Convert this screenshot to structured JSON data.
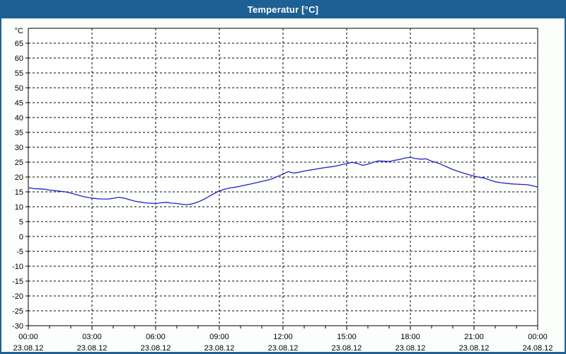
{
  "window": {
    "title": "Temperatur [°C]"
  },
  "colors": {
    "titlebar": "#1e6094",
    "frame": "#1e6094",
    "title_text": "#ffffff",
    "background": "#fbfefb",
    "plot_bg": "#ffffff",
    "grid": "#000000",
    "text": "#000000",
    "line": "#2121cc"
  },
  "chart_data": {
    "type": "line",
    "title": "Temperatur [°C]",
    "y_unit": "°C",
    "ylim": [
      -30,
      70
    ],
    "ytick_start": -30,
    "ytick_end": 65,
    "ytick_step": 5,
    "grid": "dashed",
    "legend": "none",
    "xlim_hours": [
      0,
      24
    ],
    "x_minor_tick_hours": 1,
    "x_major_ticks": [
      {
        "hour": 0,
        "time": "00:00",
        "date": "23.08.12"
      },
      {
        "hour": 3,
        "time": "03:00",
        "date": "23.08.12"
      },
      {
        "hour": 6,
        "time": "06:00",
        "date": "23.08.12"
      },
      {
        "hour": 9,
        "time": "09:00",
        "date": "23.08.12"
      },
      {
        "hour": 12,
        "time": "12:00",
        "date": "23.08.12"
      },
      {
        "hour": 15,
        "time": "15:00",
        "date": "23.08.12"
      },
      {
        "hour": 18,
        "time": "18:00",
        "date": "23.08.12"
      },
      {
        "hour": 21,
        "time": "21:00",
        "date": "23.08.12"
      },
      {
        "hour": 24,
        "time": "00:00",
        "date": "24.08.12"
      }
    ],
    "series": [
      {
        "name": "Temperatur",
        "x_start_hour": 0,
        "x_step_hours": 0.25,
        "values": [
          16.4,
          16.1,
          16.0,
          15.9,
          15.6,
          15.4,
          15.2,
          15.0,
          14.6,
          14.1,
          13.6,
          13.2,
          12.9,
          12.7,
          12.6,
          12.6,
          12.8,
          13.2,
          12.9,
          12.4,
          11.9,
          11.6,
          11.3,
          11.2,
          11.1,
          11.3,
          11.5,
          11.2,
          11.1,
          10.8,
          10.7,
          11.0,
          11.6,
          12.4,
          13.4,
          14.4,
          15.3,
          15.9,
          16.3,
          16.6,
          16.9,
          17.3,
          17.7,
          18.1,
          18.5,
          18.9,
          19.4,
          20.2,
          21.0,
          21.8,
          21.3,
          21.6,
          22.0,
          22.3,
          22.6,
          22.9,
          23.2,
          23.4,
          23.7,
          24.1,
          24.5,
          24.9,
          24.6,
          23.9,
          24.3,
          24.9,
          25.4,
          25.3,
          25.2,
          25.6,
          25.9,
          26.4,
          26.6,
          26.2,
          26.0,
          26.1,
          25.3,
          24.8,
          24.1,
          23.3,
          22.5,
          21.9,
          21.3,
          20.8,
          20.3,
          19.9,
          19.6,
          19.0,
          18.4,
          18.1,
          17.9,
          17.7,
          17.6,
          17.5,
          17.4,
          17.1,
          16.6
        ]
      }
    ]
  }
}
